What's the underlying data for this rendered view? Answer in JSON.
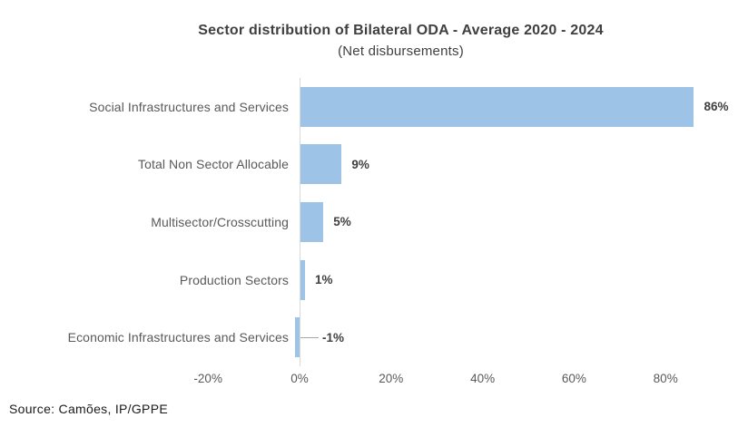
{
  "chart_data": {
    "type": "bar",
    "orientation": "horizontal",
    "title": "Sector distribution of Bilateral ODA - Average 2020 - 2024",
    "subtitle": "(Net disbursements)",
    "categories": [
      "Social Infrastructures and Services",
      "Total Non Sector Allocable",
      "Multisector/Crosscutting",
      "Production Sectors",
      "Economic Infrastructures and Services"
    ],
    "values": [
      86,
      9,
      5,
      1,
      -1
    ],
    "data_labels": [
      "86%",
      "9%",
      "5%",
      "1%",
      "-1%"
    ],
    "x_ticks": [
      {
        "label": "-20%",
        "value": -20
      },
      {
        "label": "0%",
        "value": 0
      },
      {
        "label": "20%",
        "value": 20
      },
      {
        "label": "40%",
        "value": 40
      },
      {
        "label": "60%",
        "value": 60
      },
      {
        "label": "80%",
        "value": 80
      }
    ],
    "xlim": [
      -20,
      90
    ],
    "grid": "off",
    "legend": "none",
    "colors": {
      "bar_fill": "#9dc3e6",
      "axis_line": "#d9d9d9",
      "leader_line": "#a6a6a6",
      "title_text": "#3f3f3f",
      "category_text": "#595959",
      "value_text": "#3f3f3f",
      "tick_text": "#595959"
    }
  },
  "footer": {
    "source": "Source: Camões, IP/GPPE"
  }
}
